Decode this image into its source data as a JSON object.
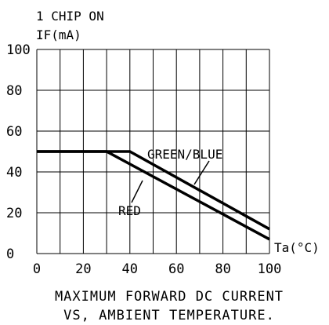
{
  "chart_data": {
    "type": "line",
    "heading": "1 CHIP ON",
    "ylabel": "IF(mA)",
    "xlabel": "Ta(°C)",
    "caption": [
      "MAXIMUM FORWARD DC CURRENT",
      "VS, AMBIENT TEMPERATURE."
    ],
    "xlim": [
      0,
      100
    ],
    "ylim": [
      0,
      100
    ],
    "x_ticks": [
      0,
      20,
      40,
      60,
      80,
      100
    ],
    "y_ticks": [
      0,
      20,
      40,
      60,
      80,
      100
    ],
    "grid": true,
    "series": [
      {
        "name": "GREEN/BLUE",
        "x": [
          0,
          40,
          100
        ],
        "y": [
          50,
          50,
          12
        ]
      },
      {
        "name": "RED",
        "x": [
          0,
          30,
          100
        ],
        "y": [
          50,
          50,
          7
        ]
      }
    ]
  }
}
